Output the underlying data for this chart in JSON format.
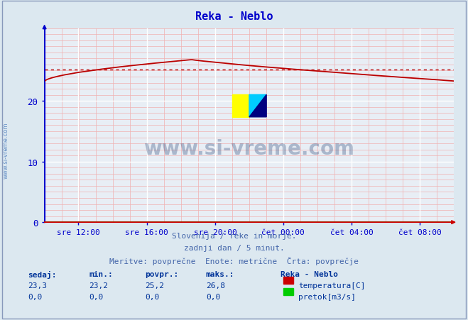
{
  "title": "Reka - Neblo",
  "title_color": "#0000cc",
  "bg_color": "#dce8f0",
  "plot_bg_color": "#e8eef5",
  "xlabel": "",
  "ylabel": "",
  "ylim": [
    0,
    32
  ],
  "yticks": [
    0,
    10,
    20
  ],
  "x_tick_labels": [
    "sre 12:00",
    "sre 16:00",
    "sre 20:00",
    "čet 00:00",
    "čet 04:00",
    "čet 08:00"
  ],
  "x_tick_positions": [
    0.083,
    0.25,
    0.417,
    0.583,
    0.75,
    0.917
  ],
  "temp_avg": 25.2,
  "avg_line_color": "#bb0000",
  "temp_line_color": "#bb0000",
  "watermark_text": "www.si-vreme.com",
  "watermark_color": "#1a3a6e",
  "watermark_alpha": 0.3,
  "footer_line1": "Slovenija / reke in morje.",
  "footer_line2": "zadnji dan / 5 minut.",
  "footer_line3": "Meritve: povprečne  Enote: metrične  Črta: povprečje",
  "footer_color": "#4466aa",
  "legend_station": "Reka - Neblo",
  "legend_temp_label": "temperatura[C]",
  "legend_temp_color": "#cc0000",
  "legend_flow_label": "pretok[m3/s]",
  "legend_flow_color": "#00cc00",
  "stats_labels": [
    "sedaj:",
    "min.:",
    "povpr.:",
    "maks.:"
  ],
  "stats_temp": [
    23.3,
    23.2,
    25.2,
    26.8
  ],
  "stats_flow": [
    0.0,
    0.0,
    0.0,
    0.0
  ],
  "stats_color": "#003399",
  "left_watermark": "www.si-vreme.com",
  "left_watermark_color": "#4477bb",
  "axis_color_y": "#0000cc",
  "axis_color_x": "#cc0000"
}
